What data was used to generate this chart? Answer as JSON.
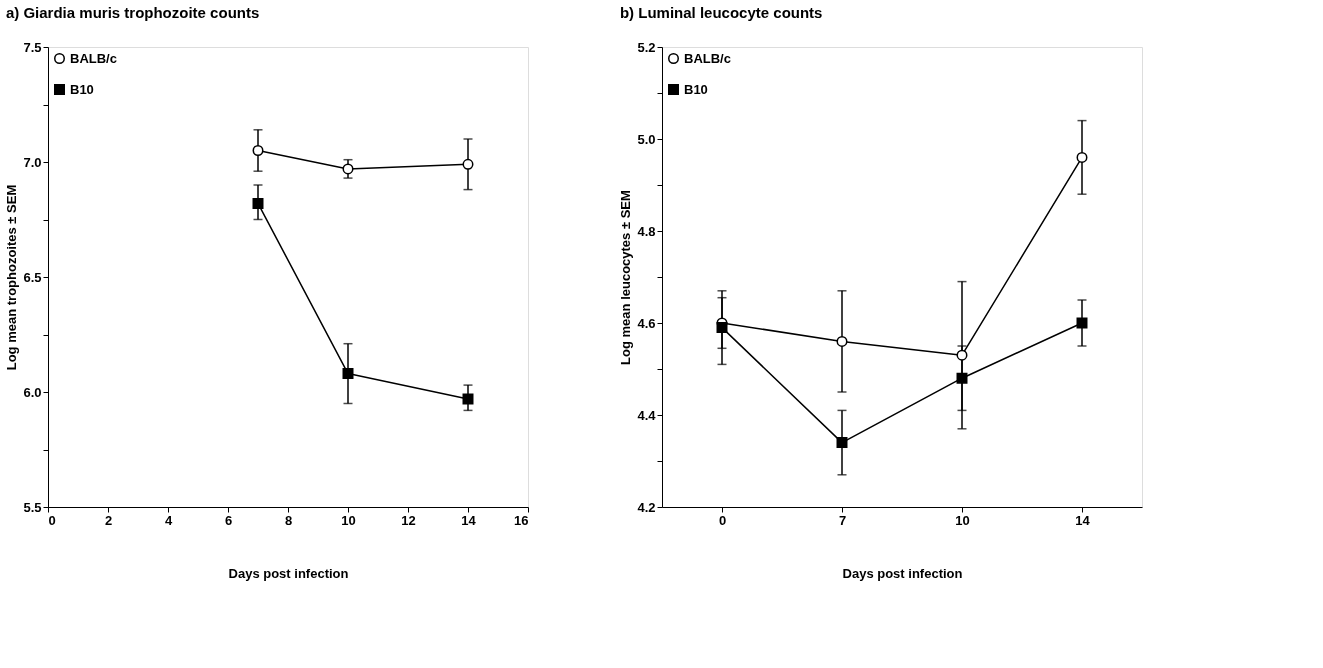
{
  "chart_data": [
    {
      "type": "line",
      "title": "a)  Giardia muris trophozoite counts",
      "xlabel": "Days post infection",
      "ylabel": "Log mean trophozoites ± SEM",
      "x": [
        7,
        10,
        14
      ],
      "xlim": [
        0,
        16
      ],
      "xticks": [
        0,
        2,
        4,
        6,
        8,
        10,
        12,
        14,
        16
      ],
      "ylim": [
        5.5,
        7.5
      ],
      "yticks": [
        5.5,
        {
          "value": 5.75,
          "label": null
        },
        {
          "value": 6,
          "label": "6.0"
        },
        {
          "value": 6.25,
          "label": null
        },
        6.5,
        {
          "value": 6.75,
          "label": null
        },
        {
          "value": 7,
          "label": "7.0"
        },
        {
          "value": 7.25,
          "label": null
        },
        7.5
      ],
      "grid": false,
      "legend": "top left",
      "series": [
        {
          "name": "BALB/c",
          "color": "#000000",
          "marker": "circle",
          "values": [
            7.05,
            6.97,
            6.99
          ],
          "errors": [
            [
              6.96,
              7.14
            ],
            [
              6.93,
              7.01
            ],
            [
              6.88,
              7.1
            ]
          ]
        },
        {
          "name": "B10",
          "color": "#000000",
          "marker": "square",
          "values": [
            6.82,
            6.08,
            5.97
          ],
          "errors": [
            [
              6.75,
              6.9
            ],
            [
              5.95,
              6.21
            ],
            [
              5.92,
              6.03
            ]
          ]
        }
      ]
    },
    {
      "type": "line",
      "title": "b)  Luminal leucocyte counts",
      "xlabel": "Days post infection",
      "ylabel": "Log mean leucocytes ± SEM",
      "categories": [
        "0",
        "7",
        "10",
        "14"
      ],
      "ylim": [
        4.2,
        5.2
      ],
      "yticks": [
        4.2,
        {
          "value": 4.3,
          "label": null
        },
        4.4,
        {
          "value": 4.5,
          "label": null
        },
        4.6,
        {
          "value": 4.7,
          "label": null
        },
        4.8,
        {
          "value": 4.9,
          "label": null
        },
        {
          "value": 5,
          "label": "5.0"
        },
        {
          "value": 5.1,
          "label": null
        },
        5.2
      ],
      "grid": false,
      "legend": "top left",
      "series": [
        {
          "name": "BALB/c",
          "color": "#000000",
          "marker": "circle",
          "values": [
            4.6,
            4.56,
            4.53,
            4.96
          ],
          "errors": [
            [
              4.545,
              4.655
            ],
            [
              4.45,
              4.67
            ],
            [
              4.37,
              4.69
            ],
            [
              4.88,
              5.04
            ]
          ]
        },
        {
          "name": "B10",
          "color": "#000000",
          "marker": "square",
          "values": [
            4.59,
            4.34,
            4.48,
            4.6
          ],
          "errors": [
            [
              4.51,
              4.67
            ],
            [
              4.27,
              4.41
            ],
            [
              4.41,
              4.55
            ],
            [
              4.55,
              4.65
            ]
          ]
        }
      ]
    }
  ]
}
